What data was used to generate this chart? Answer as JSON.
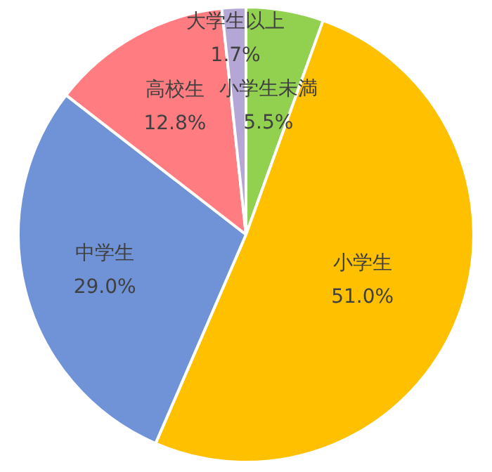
{
  "chart_data": {
    "type": "pie",
    "categories": [
      "小学生未満",
      "小学生",
      "中学生",
      "高校生",
      "大学生以上"
    ],
    "values": [
      5.5,
      51.0,
      29.0,
      12.8,
      1.7
    ],
    "value_labels": [
      "5.5%",
      "51.0%",
      "29.0%",
      "12.8%",
      "1.7%"
    ],
    "colors": [
      "#92d050",
      "#ffc000",
      "#7092d6",
      "#ff7c80",
      "#b4a7d6"
    ],
    "legend": false
  }
}
